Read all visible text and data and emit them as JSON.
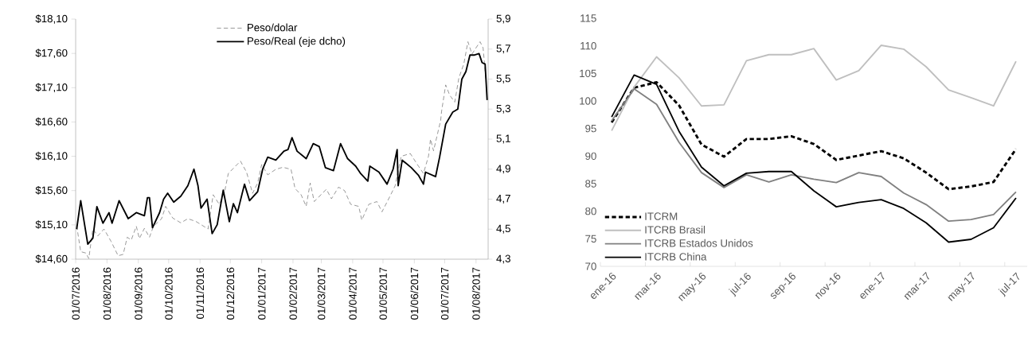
{
  "chart_data": [
    {
      "type": "line",
      "legend": "top",
      "xlim": [
        "2016-07-01",
        "2017-08-13"
      ],
      "xticks": [
        {
          "value": "2016-07-01",
          "label": "01/07/2016"
        },
        {
          "value": "2016-08-01",
          "label": "01/08/2016"
        },
        {
          "value": "2016-09-01",
          "label": "01/09/2016"
        },
        {
          "value": "2016-10-01",
          "label": "01/10/2016"
        },
        {
          "value": "2016-11-01",
          "label": "01/11/2016"
        },
        {
          "value": "2016-12-01",
          "label": "01/12/2016"
        },
        {
          "value": "2017-01-01",
          "label": "01/01/2017"
        },
        {
          "value": "2017-02-01",
          "label": "01/02/2017"
        },
        {
          "value": "2017-03-01",
          "label": "01/03/2017"
        },
        {
          "value": "2017-04-01",
          "label": "01/04/2017"
        },
        {
          "value": "2017-05-01",
          "label": "01/05/2017"
        },
        {
          "value": "2017-06-01",
          "label": "01/06/2017"
        },
        {
          "value": "2017-07-01",
          "label": "01/07/2017"
        },
        {
          "value": "2017-08-01",
          "label": "01/08/2017"
        }
      ],
      "ylim": [
        14.6,
        18.1
      ],
      "yticks": [
        {
          "value": 14.6,
          "label": "$14,60"
        },
        {
          "value": 15.1,
          "label": "$15,10"
        },
        {
          "value": 15.6,
          "label": "$15,60"
        },
        {
          "value": 16.1,
          "label": "$16,10"
        },
        {
          "value": 16.6,
          "label": "$16,60"
        },
        {
          "value": 17.1,
          "label": "$17,10"
        },
        {
          "value": 17.6,
          "label": "$17,60"
        },
        {
          "value": 18.1,
          "label": "$18,10"
        }
      ],
      "y2lim": [
        4.3,
        5.9
      ],
      "y2ticks": [
        {
          "value": 4.3,
          "label": "4,3"
        },
        {
          "value": 4.5,
          "label": "4,5"
        },
        {
          "value": 4.7,
          "label": "4,7"
        },
        {
          "value": 4.9,
          "label": "4,9"
        },
        {
          "value": 5.1,
          "label": "5,1"
        },
        {
          "value": 5.3,
          "label": "5,3"
        },
        {
          "value": 5.5,
          "label": "5,5"
        },
        {
          "value": 5.7,
          "label": "5,7"
        },
        {
          "value": 5.9,
          "label": "5,9"
        }
      ],
      "series": [
        {
          "name": "Peso/dolar",
          "color": "#7f7f7f",
          "line_style": "dashed",
          "x": [
            "2016-07-02",
            "2016-07-06",
            "2016-07-11",
            "2016-07-14",
            "2016-07-18",
            "2016-07-23",
            "2016-07-29",
            "2016-08-05",
            "2016-08-12",
            "2016-08-17",
            "2016-08-21",
            "2016-08-25",
            "2016-08-30",
            "2016-09-02",
            "2016-09-07",
            "2016-09-12",
            "2016-09-16",
            "2016-09-24",
            "2016-09-28",
            "2016-10-05",
            "2016-10-13",
            "2016-10-20",
            "2016-10-28",
            "2016-11-09",
            "2016-11-14",
            "2016-11-20",
            "2016-11-25",
            "2016-11-29",
            "2016-12-11",
            "2016-12-17",
            "2016-12-23",
            "2016-12-28",
            "2017-01-01",
            "2017-01-07",
            "2017-01-15",
            "2017-01-22",
            "2017-01-30",
            "2017-02-03",
            "2017-02-09",
            "2017-02-14",
            "2017-02-18",
            "2017-02-22",
            "2017-03-06",
            "2017-03-11",
            "2017-03-18",
            "2017-03-24",
            "2017-03-30",
            "2017-04-07",
            "2017-04-10",
            "2017-04-17",
            "2017-04-25",
            "2017-04-30",
            "2017-05-08",
            "2017-05-13",
            "2017-05-19",
            "2017-05-28",
            "2017-06-04",
            "2017-06-10",
            "2017-06-15",
            "2017-06-17",
            "2017-06-20",
            "2017-06-27",
            "2017-06-28",
            "2017-07-02",
            "2017-07-06",
            "2017-07-11",
            "2017-07-15",
            "2017-07-20",
            "2017-07-24",
            "2017-07-28",
            "2017-08-05",
            "2017-08-08",
            "2017-08-11"
          ],
          "values": [
            15.09,
            14.71,
            14.69,
            14.61,
            15.04,
            14.94,
            15.04,
            14.86,
            14.65,
            14.67,
            14.92,
            14.88,
            15.08,
            14.9,
            15.05,
            14.92,
            15.08,
            15.19,
            15.37,
            15.2,
            15.13,
            15.19,
            15.15,
            15.04,
            15.54,
            15.4,
            15.56,
            15.85,
            16.03,
            15.87,
            15.56,
            15.71,
            15.98,
            15.83,
            15.91,
            15.94,
            15.91,
            15.63,
            15.54,
            15.37,
            15.71,
            15.44,
            15.62,
            15.48,
            15.65,
            15.6,
            15.4,
            15.37,
            15.17,
            15.4,
            15.44,
            15.29,
            15.52,
            15.67,
            16.1,
            16.14,
            15.98,
            15.85,
            16.1,
            16.35,
            16.18,
            16.62,
            16.76,
            17.14,
            16.99,
            16.89,
            17.24,
            17.45,
            17.77,
            17.59,
            17.77,
            17.68,
            17.18
          ]
        },
        {
          "name": "Peso/Real (eje dcho)",
          "color": "#000000",
          "axis": "y2",
          "x": [
            "2016-07-02",
            "2016-07-06",
            "2016-07-13",
            "2016-07-18",
            "2016-07-22",
            "2016-07-28",
            "2016-08-03",
            "2016-08-06",
            "2016-08-13",
            "2016-08-22",
            "2016-08-30",
            "2016-09-07",
            "2016-09-10",
            "2016-09-12",
            "2016-09-15",
            "2016-09-22",
            "2016-09-26",
            "2016-09-30",
            "2016-10-06",
            "2016-10-13",
            "2016-10-20",
            "2016-10-26",
            "2016-10-30",
            "2016-11-02",
            "2016-11-08",
            "2016-11-13",
            "2016-11-18",
            "2016-11-24",
            "2016-11-30",
            "2016-12-04",
            "2016-12-08",
            "2016-12-15",
            "2016-12-20",
            "2016-12-28",
            "2017-01-02",
            "2017-01-07",
            "2017-01-15",
            "2017-01-23",
            "2017-01-27",
            "2017-01-31",
            "2017-02-05",
            "2017-02-14",
            "2017-02-21",
            "2017-02-27",
            "2017-03-05",
            "2017-03-13",
            "2017-03-20",
            "2017-03-27",
            "2017-04-04",
            "2017-04-09",
            "2017-04-16",
            "2017-04-18",
            "2017-04-27",
            "2017-05-05",
            "2017-05-11",
            "2017-05-15",
            "2017-05-16",
            "2017-05-20",
            "2017-05-29",
            "2017-06-05",
            "2017-06-10",
            "2017-06-12",
            "2017-06-22",
            "2017-06-26",
            "2017-07-02",
            "2017-07-09",
            "2017-07-14",
            "2017-07-18",
            "2017-07-22",
            "2017-07-26",
            "2017-07-30",
            "2017-08-04",
            "2017-08-07",
            "2017-08-10",
            "2017-08-12"
          ],
          "values": [
            4.5,
            4.69,
            4.4,
            4.44,
            4.65,
            4.54,
            4.61,
            4.54,
            4.69,
            4.57,
            4.61,
            4.59,
            4.71,
            4.71,
            4.51,
            4.61,
            4.7,
            4.74,
            4.68,
            4.72,
            4.79,
            4.9,
            4.79,
            4.64,
            4.7,
            4.47,
            4.53,
            4.76,
            4.55,
            4.67,
            4.61,
            4.8,
            4.69,
            4.75,
            4.9,
            4.98,
            4.96,
            5.02,
            5.03,
            5.11,
            5.02,
            4.97,
            5.07,
            5.05,
            4.91,
            4.89,
            5.07,
            4.97,
            4.92,
            4.87,
            4.82,
            4.92,
            4.88,
            4.8,
            4.9,
            5.03,
            4.79,
            4.96,
            4.91,
            4.86,
            4.8,
            4.88,
            4.85,
            4.98,
            5.2,
            5.28,
            5.3,
            5.5,
            5.55,
            5.66,
            5.66,
            5.67,
            5.61,
            5.6,
            5.36
          ]
        }
      ]
    },
    {
      "type": "line",
      "legend": "bottom left",
      "categories": [
        "ene-16",
        null,
        "mar-16",
        null,
        "may-16",
        null,
        "jul-16",
        null,
        "sep-16",
        null,
        "nov-16",
        null,
        "ene-17",
        null,
        "mar-17",
        null,
        "may-17",
        null,
        "jul-17"
      ],
      "ylim": [
        70,
        115
      ],
      "yticks": [
        70,
        75,
        80,
        85,
        90,
        95,
        100,
        105,
        110,
        115
      ],
      "series": [
        {
          "name": "ITCRM",
          "color": "#000000",
          "line_style": "dashed",
          "values": [
            96.1,
            102.4,
            103.4,
            99.2,
            92.1,
            89.9,
            93.1,
            93.1,
            93.6,
            92.2,
            89.3,
            90.1,
            90.9,
            89.6,
            87.0,
            84.0,
            84.5,
            85.3,
            91.3
          ]
        },
        {
          "name": "ITCRB Brasil",
          "color": "#bfbfbf",
          "values": [
            94.6,
            102.5,
            108.0,
            104.2,
            99.1,
            99.3,
            107.3,
            108.4,
            108.4,
            109.5,
            103.8,
            105.5,
            110.1,
            109.4,
            106.2,
            102.0,
            100.6,
            99.1,
            107.2
          ]
        },
        {
          "name": "ITCRB Estados Unidos",
          "color": "#808080",
          "values": [
            96.4,
            102.2,
            99.4,
            92.5,
            87.0,
            84.3,
            86.6,
            85.3,
            86.6,
            85.8,
            85.2,
            87.0,
            86.3,
            83.3,
            81.2,
            78.2,
            78.5,
            79.4,
            83.5
          ]
        },
        {
          "name": "ITCRB China",
          "color": "#000000",
          "values": [
            97.1,
            104.7,
            103.0,
            94.5,
            88.0,
            84.6,
            86.9,
            87.2,
            87.2,
            83.7,
            80.8,
            81.6,
            82.1,
            80.5,
            77.9,
            74.4,
            74.9,
            77.0,
            82.4
          ]
        }
      ]
    }
  ]
}
